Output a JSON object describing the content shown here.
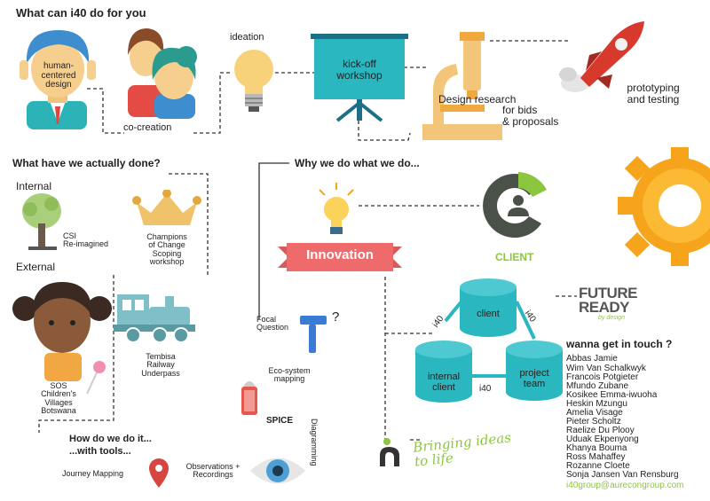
{
  "sections": {
    "what_can": "What can i40 do for you",
    "actually_done": "What have we actually done?",
    "why": "Why we do what we do...",
    "how": "How do we do it...",
    "with_tools": "...with tools..."
  },
  "top_flow": {
    "human_centered": "human-\ncentered\ndesign",
    "co_creation": "co-creation",
    "ideation": "ideation",
    "kickoff": "kick-off\nworkshop",
    "design_research": "Design research",
    "bids": "for bids\n& proposals",
    "prototyping": "prototyping\nand testing"
  },
  "done": {
    "internal": "Internal",
    "external": "External",
    "csi": "CSI\nRe-imagined",
    "champions": "Champions\nof Change\nScoping\nworkshop",
    "tembisa": "Tembisa\nRailway\nUnderpass",
    "sos": "SOS\nChildren's\nVillages\nBotswana"
  },
  "why": {
    "innovation": "Innovation",
    "client": "CLIENT",
    "focal_question": "Focal\nQuestion",
    "question_mark": "?",
    "future": "FUTURE",
    "ready": "READY",
    "by_design": "by design",
    "bringing": "Bringing ideas\nto life"
  },
  "triangle": {
    "client": "client",
    "internal_client": "internal\nclient",
    "project_team": "project\nteam",
    "i40_left": "i40",
    "i40_right": "i40",
    "i40_bottom": "i40"
  },
  "tools": {
    "eco_system": "Eco-system\nmapping",
    "spice": "SPICE",
    "diagramming": "Diagramming",
    "journey": "Journey Mapping",
    "observations": "Observations +\nRecordings"
  },
  "contact": {
    "heading": "wanna get in touch ?",
    "names": [
      "Abbas Jamie",
      "Wim Van Schalkwyk",
      "Francois Potgieter",
      "Mfundo Zubane",
      "Kosikee Emma-iwuoha",
      "Heskin Mzungu",
      "Amelia Visage",
      "Pieter Scholtz",
      "Raelize Du Plooy",
      "Uduak Ekpenyong",
      "Khanya Bouma",
      "Ross Mahaffey",
      "Rozanne Cloete",
      "Sonja Jansen Van Rensburg"
    ],
    "email": "i40group@aurecongroup.com"
  },
  "colors": {
    "teal": "#2ab7c0",
    "yellow": "#f2b84a",
    "orange": "#f7a41d",
    "red_banner": "#ef6b6b",
    "client_green": "#8cc63f",
    "client_dark": "#4a5148",
    "aurecon_green": "#8dc63f"
  }
}
